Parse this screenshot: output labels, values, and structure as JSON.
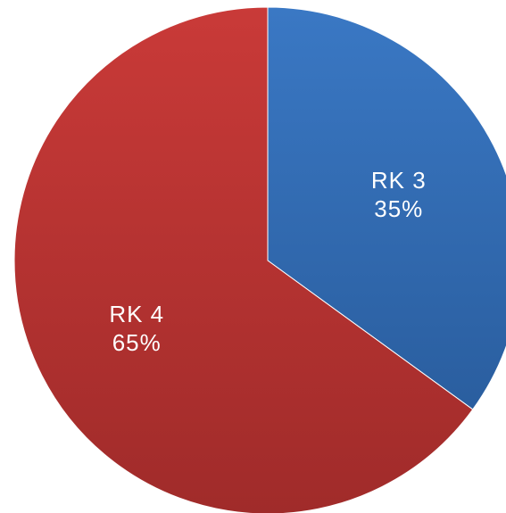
{
  "chart_data": {
    "type": "pie",
    "start_angle_deg": 0,
    "direction": "clockwise",
    "slices": [
      {
        "label": "RK 3",
        "value": 35,
        "percent_label": "35%",
        "color": "#3a78c4",
        "color_dark": "#2a5e9f"
      },
      {
        "label": "RK 4",
        "value": 65,
        "percent_label": "65%",
        "color": "#c93a38",
        "color_dark": "#a02b2a"
      }
    ]
  }
}
